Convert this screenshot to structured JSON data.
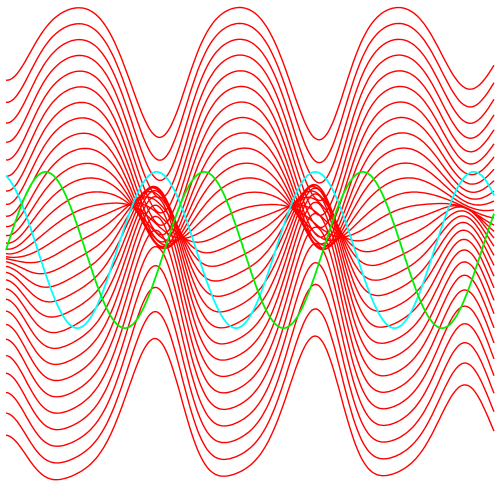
{
  "chart_data": {
    "type": "line",
    "title": "",
    "xlabel": "",
    "ylabel": "",
    "grid": false,
    "axes_visible": false,
    "xlim": [
      0,
      1
    ],
    "ylim": [
      0,
      1
    ],
    "series": [
      {
        "role": "sine-wave",
        "color": "#00ffff",
        "amplitude": 0.16,
        "baseline": 0.5,
        "period": 0.325,
        "phase": 0.3
      },
      {
        "role": "sine-wave",
        "color": "#00ee00",
        "amplitude": 0.16,
        "baseline": 0.5,
        "period": 0.325,
        "phase": 0.0
      }
    ],
    "field_lines": {
      "color": "#ff0000",
      "count": 30,
      "source_x": [
        0.0,
        0.33,
        0.655
      ],
      "sink_x": [
        0.29,
        0.62,
        0.945
      ],
      "singularity_y": [
        0.48,
        0.39
      ]
    }
  }
}
